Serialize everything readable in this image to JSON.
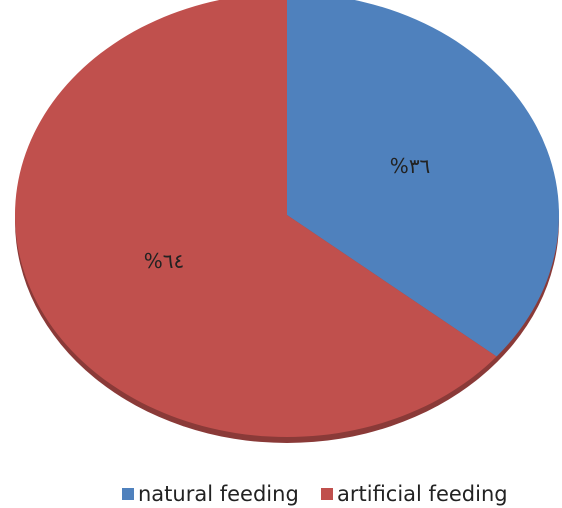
{
  "chart_data": {
    "type": "pie",
    "categories": [
      "natural feeding",
      "artificial feeding"
    ],
    "values": [
      36,
      64
    ],
    "value_labels": [
      "%٣٦",
      "%٦٤"
    ],
    "colors": [
      "#4f81bd",
      "#c0504d"
    ]
  }
}
